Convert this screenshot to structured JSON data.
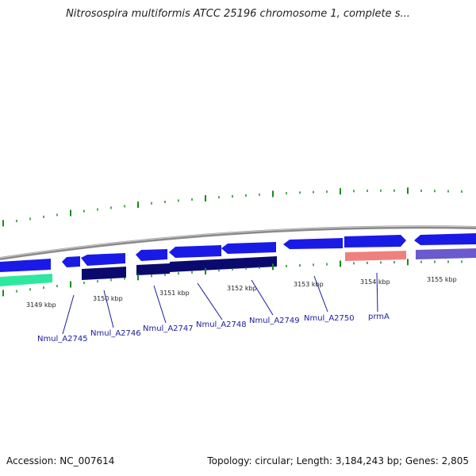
{
  "title": "Nitrosospira multiformis ATCC 25196 chromosome 1, complete s...",
  "colors": {
    "ticks": "#1a8a1a",
    "backbone": "#888888",
    "gene_forward": "#1a1ae6",
    "gene_reverse": "#0a0a6e",
    "rrna": "#2ee8a0",
    "highlight_pink": "#f08080",
    "highlight_purple": "#6a5acd",
    "label_link": "#1a1aa0"
  },
  "kbp_labels": [
    "3149 kbp",
    "3150 kbp",
    "3151 kbp",
    "3152 kbp",
    "3153 kbp",
    "3154 kbp",
    "3155 kbp"
  ],
  "gene_labels": [
    "Nmul_A2745",
    "Nmul_A2746",
    "Nmul_A2747",
    "Nmul_A2748",
    "Nmul_A2749",
    "Nmul_A2750",
    "prmA"
  ],
  "footer": {
    "accession": "Accession: NC_007614",
    "stats": "Topology: circular; Length: 3,184,243 bp; Genes: 2,805"
  }
}
